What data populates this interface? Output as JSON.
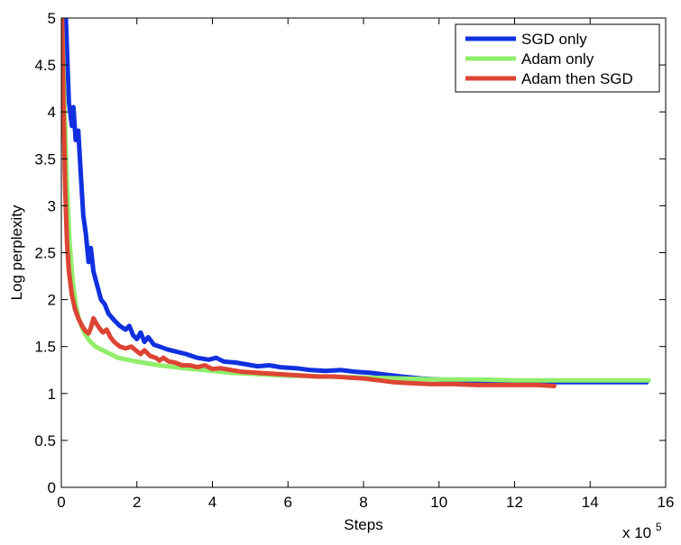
{
  "chart_data": {
    "type": "line",
    "xlabel": "Steps",
    "ylabel": "Log perplexity",
    "x_multiplier": "x 10",
    "x_multiplier_exp": "5",
    "xlim": [
      0,
      16
    ],
    "ylim": [
      0,
      5
    ],
    "x_ticks": [
      "0",
      "2",
      "4",
      "6",
      "8",
      "10",
      "12",
      "14",
      "16"
    ],
    "y_ticks": [
      "0",
      "0.5",
      "1",
      "1.5",
      "2",
      "2.5",
      "3",
      "3.5",
      "4",
      "4.5",
      "5"
    ],
    "legend_position": "top-right",
    "grid": false,
    "series": [
      {
        "name": "SGD only",
        "color": "#1030e0",
        "points": [
          [
            0.12,
            5.0
          ],
          [
            0.2,
            4.1
          ],
          [
            0.28,
            3.85
          ],
          [
            0.32,
            4.05
          ],
          [
            0.38,
            3.7
          ],
          [
            0.45,
            3.8
          ],
          [
            0.52,
            3.3
          ],
          [
            0.58,
            2.9
          ],
          [
            0.65,
            2.7
          ],
          [
            0.72,
            2.4
          ],
          [
            0.78,
            2.55
          ],
          [
            0.85,
            2.3
          ],
          [
            0.95,
            2.15
          ],
          [
            1.05,
            2.0
          ],
          [
            1.15,
            1.95
          ],
          [
            1.25,
            1.85
          ],
          [
            1.4,
            1.78
          ],
          [
            1.55,
            1.72
          ],
          [
            1.7,
            1.68
          ],
          [
            1.8,
            1.72
          ],
          [
            1.9,
            1.62
          ],
          [
            2.0,
            1.58
          ],
          [
            2.1,
            1.65
          ],
          [
            2.2,
            1.55
          ],
          [
            2.3,
            1.6
          ],
          [
            2.45,
            1.52
          ],
          [
            2.6,
            1.5
          ],
          [
            2.8,
            1.47
          ],
          [
            3.0,
            1.45
          ],
          [
            3.3,
            1.42
          ],
          [
            3.6,
            1.38
          ],
          [
            3.9,
            1.36
          ],
          [
            4.1,
            1.38
          ],
          [
            4.3,
            1.34
          ],
          [
            4.6,
            1.33
          ],
          [
            4.9,
            1.31
          ],
          [
            5.2,
            1.29
          ],
          [
            5.5,
            1.3
          ],
          [
            5.8,
            1.28
          ],
          [
            6.2,
            1.27
          ],
          [
            6.6,
            1.25
          ],
          [
            7.0,
            1.24
          ],
          [
            7.4,
            1.25
          ],
          [
            7.8,
            1.23
          ],
          [
            8.2,
            1.22
          ],
          [
            8.6,
            1.2
          ],
          [
            9.0,
            1.18
          ],
          [
            9.5,
            1.16
          ],
          [
            10.0,
            1.15
          ],
          [
            10.5,
            1.14
          ],
          [
            11.0,
            1.13
          ],
          [
            11.5,
            1.12
          ],
          [
            12.0,
            1.12
          ],
          [
            12.5,
            1.12
          ],
          [
            13.0,
            1.12
          ],
          [
            13.5,
            1.12
          ],
          [
            14.0,
            1.12
          ],
          [
            14.5,
            1.12
          ],
          [
            15.0,
            1.12
          ],
          [
            15.5,
            1.12
          ]
        ]
      },
      {
        "name": "Adam only",
        "color": "#90ee6a",
        "points": [
          [
            0.02,
            5.0
          ],
          [
            0.08,
            4.1
          ],
          [
            0.15,
            3.2
          ],
          [
            0.22,
            2.6
          ],
          [
            0.3,
            2.2
          ],
          [
            0.38,
            1.95
          ],
          [
            0.46,
            1.8
          ],
          [
            0.55,
            1.7
          ],
          [
            0.65,
            1.62
          ],
          [
            0.75,
            1.56
          ],
          [
            0.9,
            1.5
          ],
          [
            1.1,
            1.46
          ],
          [
            1.3,
            1.42
          ],
          [
            1.5,
            1.38
          ],
          [
            1.75,
            1.36
          ],
          [
            2.0,
            1.34
          ],
          [
            2.3,
            1.32
          ],
          [
            2.6,
            1.3
          ],
          [
            3.0,
            1.28
          ],
          [
            3.5,
            1.26
          ],
          [
            4.0,
            1.24
          ],
          [
            4.5,
            1.22
          ],
          [
            5.0,
            1.21
          ],
          [
            5.5,
            1.2
          ],
          [
            6.0,
            1.19
          ],
          [
            7.0,
            1.18
          ],
          [
            8.0,
            1.17
          ],
          [
            9.0,
            1.16
          ],
          [
            10.0,
            1.15
          ],
          [
            11.0,
            1.15
          ],
          [
            12.0,
            1.14
          ],
          [
            13.0,
            1.14
          ],
          [
            14.0,
            1.14
          ],
          [
            15.0,
            1.14
          ],
          [
            15.55,
            1.14
          ]
        ]
      },
      {
        "name": "Adam then SGD",
        "color": "#dd4433",
        "points": [
          [
            0.02,
            5.0
          ],
          [
            0.06,
            4.0
          ],
          [
            0.1,
            3.2
          ],
          [
            0.15,
            2.6
          ],
          [
            0.2,
            2.3
          ],
          [
            0.28,
            2.05
          ],
          [
            0.36,
            1.9
          ],
          [
            0.45,
            1.8
          ],
          [
            0.55,
            1.72
          ],
          [
            0.65,
            1.66
          ],
          [
            0.72,
            1.64
          ],
          [
            0.78,
            1.7
          ],
          [
            0.85,
            1.8
          ],
          [
            0.92,
            1.75
          ],
          [
            1.0,
            1.7
          ],
          [
            1.1,
            1.65
          ],
          [
            1.2,
            1.68
          ],
          [
            1.3,
            1.6
          ],
          [
            1.4,
            1.55
          ],
          [
            1.55,
            1.5
          ],
          [
            1.7,
            1.48
          ],
          [
            1.85,
            1.5
          ],
          [
            2.0,
            1.45
          ],
          [
            2.1,
            1.42
          ],
          [
            2.2,
            1.46
          ],
          [
            2.35,
            1.4
          ],
          [
            2.5,
            1.38
          ],
          [
            2.6,
            1.35
          ],
          [
            2.7,
            1.38
          ],
          [
            2.85,
            1.34
          ],
          [
            3.0,
            1.33
          ],
          [
            3.2,
            1.3
          ],
          [
            3.4,
            1.3
          ],
          [
            3.6,
            1.28
          ],
          [
            3.8,
            1.3
          ],
          [
            4.0,
            1.26
          ],
          [
            4.2,
            1.27
          ],
          [
            4.5,
            1.25
          ],
          [
            4.8,
            1.23
          ],
          [
            5.2,
            1.22
          ],
          [
            5.6,
            1.21
          ],
          [
            6.0,
            1.2
          ],
          [
            6.4,
            1.19
          ],
          [
            6.8,
            1.18
          ],
          [
            7.2,
            1.18
          ],
          [
            7.6,
            1.17
          ],
          [
            8.0,
            1.16
          ],
          [
            8.4,
            1.14
          ],
          [
            8.8,
            1.12
          ],
          [
            9.2,
            1.11
          ],
          [
            9.8,
            1.1
          ],
          [
            10.4,
            1.1
          ],
          [
            11.0,
            1.09
          ],
          [
            11.6,
            1.09
          ],
          [
            12.2,
            1.09
          ],
          [
            12.6,
            1.09
          ],
          [
            13.05,
            1.08
          ]
        ]
      }
    ]
  }
}
